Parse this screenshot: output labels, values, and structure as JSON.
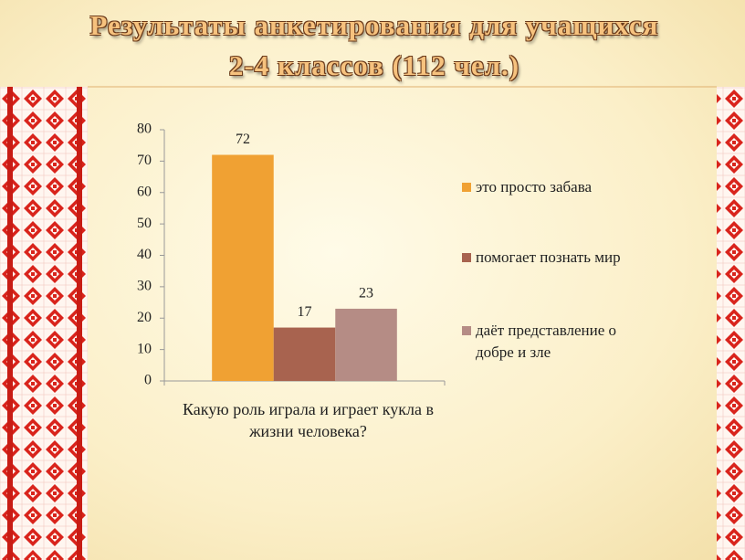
{
  "chart_data": {
    "type": "bar",
    "title": "Результаты анкетирования для учащихся 2-4 классов (112 чел.)",
    "categories": [
      "Какую роль играла и играет кукла в жизни человека?"
    ],
    "series": [
      {
        "name": "это просто забава",
        "color": "#f0a133",
        "values": [
          72
        ]
      },
      {
        "name": "помогает познать мир",
        "color": "#a8634f",
        "values": [
          17
        ]
      },
      {
        "name": "даёт представление о добре и зле",
        "color": "#b58c85",
        "values": [
          23
        ]
      }
    ],
    "ylim": [
      0,
      80
    ],
    "yticks": [
      0,
      10,
      20,
      30,
      40,
      50,
      60,
      70,
      80
    ],
    "grid": false,
    "legend": "right"
  }
}
